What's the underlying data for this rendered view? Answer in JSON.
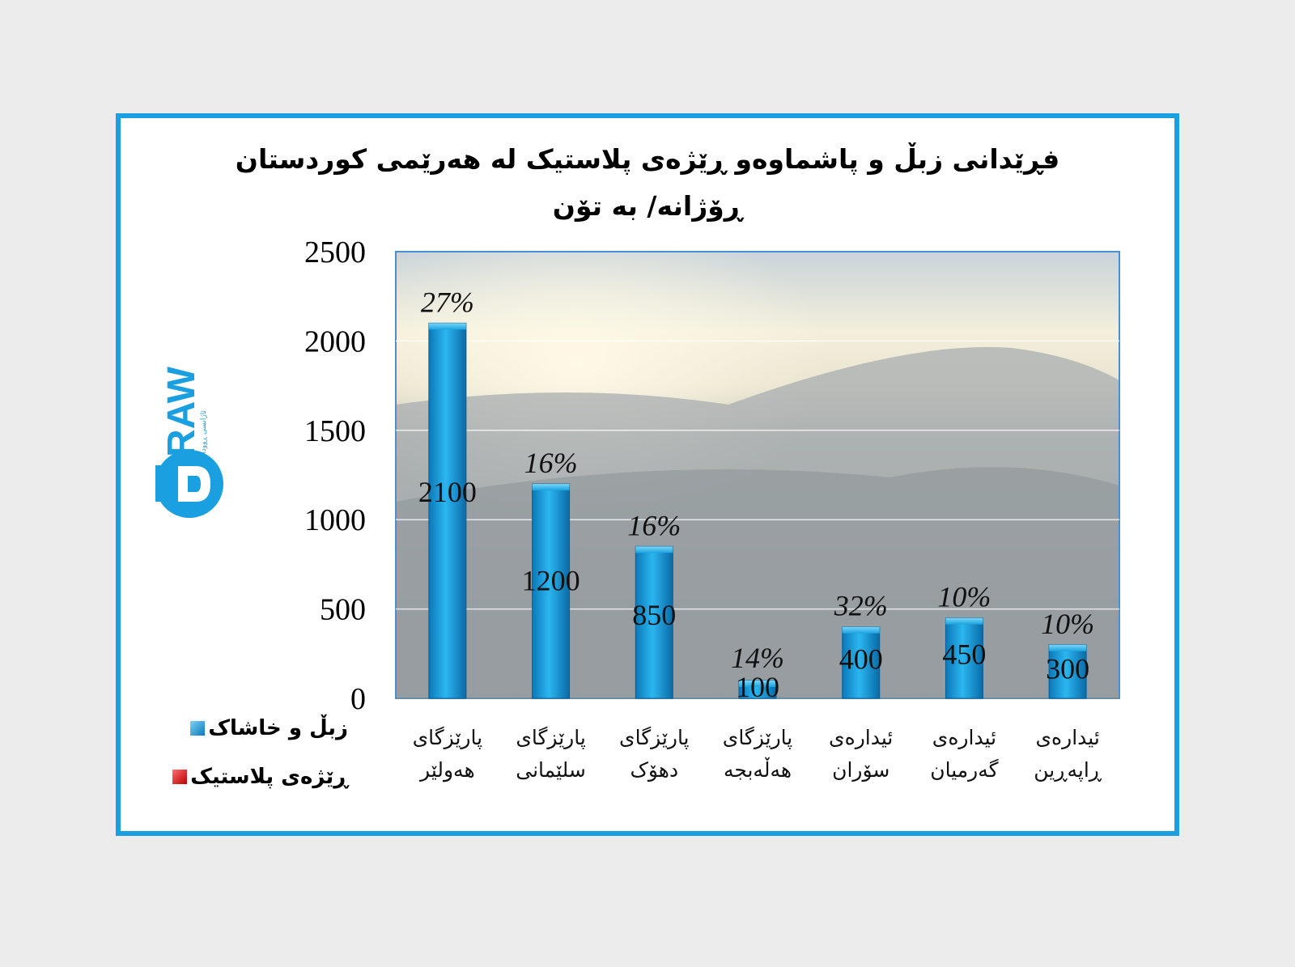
{
  "chart_data": {
    "type": "bar",
    "title_line1": "فڕێدانی زبڵ و پاشماوەو ڕێژەی پلاستیک لە هەرێمی کوردستان",
    "title_line2": "ڕۆژانە/ بە تۆن",
    "categories": [
      {
        "line1": "پارێزگای",
        "line2": "هەولێر"
      },
      {
        "line1": "پارێزگای",
        "line2": "سلێمانی"
      },
      {
        "line1": "پارێزگای",
        "line2": "دهۆک"
      },
      {
        "line1": "پارێزگای",
        "line2": "هەڵەبجە"
      },
      {
        "line1": "ئیدارەی",
        "line2": "سۆران"
      },
      {
        "line1": "ئیدارەی",
        "line2": "گەرمیان"
      },
      {
        "line1": "ئیدارەی",
        "line2": "ڕاپەڕین"
      }
    ],
    "series": [
      {
        "name": "زبڵ و خاشاک",
        "color": "#1aa3e0",
        "values": [
          2100,
          1200,
          850,
          100,
          400,
          450,
          300
        ],
        "value_labels": [
          "2100",
          "1200",
          "850",
          "100",
          "400",
          "450",
          "300"
        ]
      },
      {
        "name": "ڕێژەی پلاستیک",
        "color": "#e01a1a",
        "values": [
          27,
          16,
          16,
          14,
          32,
          10,
          10
        ],
        "value_labels": [
          "27%",
          "16%",
          "16%",
          "14%",
          "32%",
          "10%",
          "10%"
        ]
      }
    ],
    "y_ticks": [
      "0",
      "500",
      "1000",
      "1500",
      "2000",
      "2500"
    ],
    "ylim": [
      0,
      2500
    ],
    "grid": true,
    "legend_position": "bottom-left"
  },
  "logo": {
    "text": "RAW",
    "subtitle": "ئاژانسی ڕووداو"
  },
  "colors": {
    "frame": "#1a9fe0",
    "bar": "#1aa3e0"
  }
}
